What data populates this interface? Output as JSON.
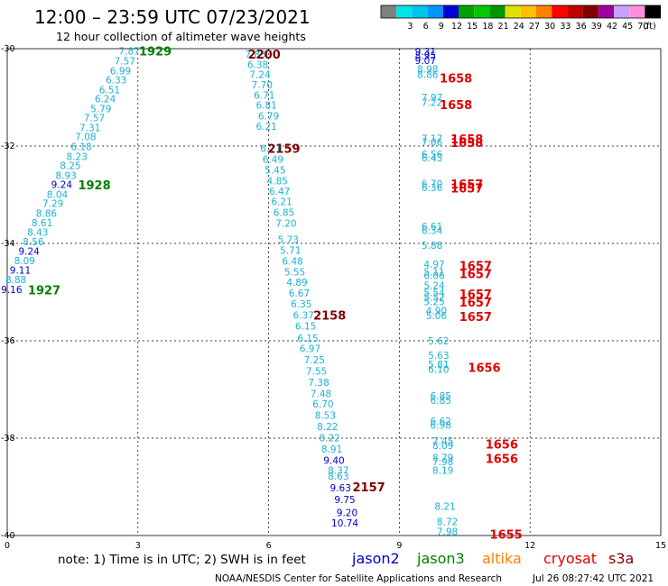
{
  "title": "12:00 – 23:59 UTC 07/23/2021",
  "subtitle": "12 hour collection of altimeter wave heights",
  "colorbar": {
    "unit": "(ft)",
    "swatches": [
      {
        "color": "#808080",
        "label": ""
      },
      {
        "color": "#00e5e5",
        "label": "3"
      },
      {
        "color": "#00c4f0",
        "label": "6"
      },
      {
        "color": "#0095ff",
        "label": "9"
      },
      {
        "color": "#0000d8",
        "label": "12"
      },
      {
        "color": "#00a000",
        "label": "15"
      },
      {
        "color": "#00c800",
        "label": "18"
      },
      {
        "color": "#009600",
        "label": "21"
      },
      {
        "color": "#e0e000",
        "label": "24"
      },
      {
        "color": "#ffc000",
        "label": "27"
      },
      {
        "color": "#ff8000",
        "label": "30"
      },
      {
        "color": "#ff0000",
        "label": "33"
      },
      {
        "color": "#c00000",
        "label": "36"
      },
      {
        "color": "#800000",
        "label": "39"
      },
      {
        "color": "#a000a0",
        "label": "42"
      },
      {
        "color": "#c8a0ff",
        "label": "45"
      },
      {
        "color": "#ff90e0",
        "label": "70"
      },
      {
        "color": "#000000",
        "label": ""
      }
    ]
  },
  "axes": {
    "x_ticks": [
      {
        "value": 0,
        "label": "0"
      },
      {
        "value": 3,
        "label": "3"
      },
      {
        "value": 6,
        "label": "6"
      },
      {
        "value": 9,
        "label": "9"
      },
      {
        "value": 12,
        "label": "12"
      },
      {
        "value": 15,
        "label": "15"
      }
    ],
    "y_ticks": [
      {
        "value": -30,
        "label": "-30"
      },
      {
        "value": -32,
        "label": "-32"
      },
      {
        "value": -34,
        "label": "-34"
      },
      {
        "value": -36,
        "label": "-36"
      },
      {
        "value": -38,
        "label": "-38"
      },
      {
        "value": -40,
        "label": "-40"
      }
    ],
    "x_range": [
      0,
      15
    ],
    "y_range": [
      -40,
      -30
    ]
  },
  "colors": {
    "light": "#1ab2d6",
    "blue": "#0000c8",
    "green": "#008000",
    "maroon": "#800000",
    "red": "#e00000"
  },
  "values": [
    {
      "lon": 2.8,
      "lat": -30.05,
      "t": "7.87",
      "c": "light"
    },
    {
      "lon": 2.7,
      "lat": -30.25,
      "t": "7.57",
      "c": "light"
    },
    {
      "lon": 2.6,
      "lat": -30.45,
      "t": "6.99",
      "c": "light"
    },
    {
      "lon": 2.5,
      "lat": -30.64,
      "t": "6.33",
      "c": "light"
    },
    {
      "lon": 2.35,
      "lat": -30.84,
      "t": "6.51",
      "c": "light"
    },
    {
      "lon": 2.25,
      "lat": -31.03,
      "t": "6.24",
      "c": "light"
    },
    {
      "lon": 2.15,
      "lat": -31.23,
      "t": "5.79",
      "c": "light"
    },
    {
      "lon": 2.0,
      "lat": -31.42,
      "t": "7.57",
      "c": "light"
    },
    {
      "lon": 1.9,
      "lat": -31.62,
      "t": "7.31",
      "c": "light"
    },
    {
      "lon": 1.8,
      "lat": -31.81,
      "t": "7.08",
      "c": "light"
    },
    {
      "lon": 1.7,
      "lat": -32.01,
      "t": "6.18",
      "c": "light"
    },
    {
      "lon": 1.6,
      "lat": -32.21,
      "t": "8.23",
      "c": "light"
    },
    {
      "lon": 1.45,
      "lat": -32.4,
      "t": "8.25",
      "c": "light"
    },
    {
      "lon": 1.35,
      "lat": -32.6,
      "t": "8.93",
      "c": "light"
    },
    {
      "lon": 1.25,
      "lat": -32.79,
      "t": "9.24",
      "c": "blue"
    },
    {
      "lon": 1.15,
      "lat": -32.99,
      "t": "8.04",
      "c": "light"
    },
    {
      "lon": 1.05,
      "lat": -33.18,
      "t": "7.29",
      "c": "light"
    },
    {
      "lon": 0.9,
      "lat": -33.38,
      "t": "8.86",
      "c": "light"
    },
    {
      "lon": 0.8,
      "lat": -33.57,
      "t": "8.61",
      "c": "light"
    },
    {
      "lon": 0.7,
      "lat": -33.77,
      "t": "8.43",
      "c": "light"
    },
    {
      "lon": 0.6,
      "lat": -33.96,
      "t": "8.56",
      "c": "light"
    },
    {
      "lon": 0.5,
      "lat": -34.16,
      "t": "9.24",
      "c": "blue"
    },
    {
      "lon": 0.4,
      "lat": -34.35,
      "t": "8.09",
      "c": "light"
    },
    {
      "lon": 0.3,
      "lat": -34.55,
      "t": "9.11",
      "c": "blue"
    },
    {
      "lon": 0.2,
      "lat": -34.74,
      "t": "8.88",
      "c": "light"
    },
    {
      "lon": 0.1,
      "lat": -34.94,
      "t": "9.16",
      "c": "blue"
    },
    {
      "lon": 5.7,
      "lat": -30.11,
      "t": "7.83",
      "c": "light"
    },
    {
      "lon": 5.75,
      "lat": -30.32,
      "t": "6.38",
      "c": "light"
    },
    {
      "lon": 5.8,
      "lat": -30.53,
      "t": "7.24",
      "c": "light"
    },
    {
      "lon": 5.85,
      "lat": -30.74,
      "t": "7.70",
      "c": "light"
    },
    {
      "lon": 5.9,
      "lat": -30.95,
      "t": "6.71",
      "c": "light"
    },
    {
      "lon": 5.95,
      "lat": -31.16,
      "t": "6.81",
      "c": "light"
    },
    {
      "lon": 6.0,
      "lat": -31.38,
      "t": "6.79",
      "c": "light"
    },
    {
      "lon": 5.95,
      "lat": -31.59,
      "t": "6.21",
      "c": "light"
    },
    {
      "lon": 6.05,
      "lat": -32.05,
      "t": "6.71",
      "c": "light"
    },
    {
      "lon": 6.1,
      "lat": -32.27,
      "t": "6.49",
      "c": "light"
    },
    {
      "lon": 6.15,
      "lat": -32.49,
      "t": "5.45",
      "c": "light"
    },
    {
      "lon": 6.2,
      "lat": -32.71,
      "t": "4.85",
      "c": "light"
    },
    {
      "lon": 6.25,
      "lat": -32.93,
      "t": "6.47",
      "c": "light"
    },
    {
      "lon": 6.3,
      "lat": -33.14,
      "t": "6.21",
      "c": "light"
    },
    {
      "lon": 6.35,
      "lat": -33.36,
      "t": "6.85",
      "c": "light"
    },
    {
      "lon": 6.4,
      "lat": -33.58,
      "t": "7.20",
      "c": "light"
    },
    {
      "lon": 6.45,
      "lat": -33.92,
      "t": "5.73",
      "c": "light"
    },
    {
      "lon": 6.5,
      "lat": -34.14,
      "t": "5.71",
      "c": "light"
    },
    {
      "lon": 6.55,
      "lat": -34.36,
      "t": "6.48",
      "c": "light"
    },
    {
      "lon": 6.6,
      "lat": -34.58,
      "t": "5.55",
      "c": "light"
    },
    {
      "lon": 6.65,
      "lat": -34.8,
      "t": "4.89",
      "c": "light"
    },
    {
      "lon": 6.7,
      "lat": -35.02,
      "t": "6.67",
      "c": "light"
    },
    {
      "lon": 6.75,
      "lat": -35.24,
      "t": "6.35",
      "c": "light"
    },
    {
      "lon": 6.8,
      "lat": -35.47,
      "t": "6.37",
      "c": "light"
    },
    {
      "lon": 6.85,
      "lat": -35.69,
      "t": "6.15",
      "c": "light"
    },
    {
      "lon": 6.9,
      "lat": -35.94,
      "t": "6.15",
      "c": "light"
    },
    {
      "lon": 6.95,
      "lat": -36.16,
      "t": "6.97",
      "c": "light"
    },
    {
      "lon": 7.05,
      "lat": -36.39,
      "t": "7.25",
      "c": "light"
    },
    {
      "lon": 7.1,
      "lat": -36.62,
      "t": "7.55",
      "c": "light"
    },
    {
      "lon": 7.15,
      "lat": -36.85,
      "t": "7.38",
      "c": "light"
    },
    {
      "lon": 7.2,
      "lat": -37.08,
      "t": "7.48",
      "c": "light"
    },
    {
      "lon": 7.25,
      "lat": -37.3,
      "t": "6.70",
      "c": "light"
    },
    {
      "lon": 7.3,
      "lat": -37.53,
      "t": "8.53",
      "c": "light"
    },
    {
      "lon": 7.35,
      "lat": -37.76,
      "t": "8.22",
      "c": "light"
    },
    {
      "lon": 7.4,
      "lat": -37.99,
      "t": "8.22",
      "c": "light"
    },
    {
      "lon": 7.45,
      "lat": -38.22,
      "t": "8.91",
      "c": "light"
    },
    {
      "lon": 7.5,
      "lat": -38.45,
      "t": "9.40",
      "c": "blue"
    },
    {
      "lon": 7.6,
      "lat": -38.66,
      "t": "8.37",
      "c": "light"
    },
    {
      "lon": 7.6,
      "lat": -38.78,
      "t": "8.63",
      "c": "light"
    },
    {
      "lon": 7.65,
      "lat": -39.02,
      "t": "9.63",
      "c": "blue"
    },
    {
      "lon": 7.75,
      "lat": -39.26,
      "t": "9.75",
      "c": "blue"
    },
    {
      "lon": 7.8,
      "lat": -39.53,
      "t": "9.20",
      "c": "blue"
    },
    {
      "lon": 7.75,
      "lat": -39.74,
      "t": "10.74",
      "c": "blue"
    },
    {
      "lon": 9.6,
      "lat": -30.06,
      "t": "9.31",
      "c": "blue"
    },
    {
      "lon": 9.6,
      "lat": -30.14,
      "t": "8.95",
      "c": "blue"
    },
    {
      "lon": 9.6,
      "lat": -30.24,
      "t": "9.07",
      "c": "blue"
    },
    {
      "lon": 9.65,
      "lat": -30.42,
      "t": "8.98",
      "c": "light"
    },
    {
      "lon": 9.65,
      "lat": -30.53,
      "t": "8.86",
      "c": "light"
    },
    {
      "lon": 9.75,
      "lat": -31.0,
      "t": "7.97",
      "c": "light"
    },
    {
      "lon": 9.75,
      "lat": -31.1,
      "t": "7.22",
      "c": "light"
    },
    {
      "lon": 9.75,
      "lat": -31.84,
      "t": "7.17",
      "c": "light"
    },
    {
      "lon": 9.75,
      "lat": -31.92,
      "t": "7.06",
      "c": "light"
    },
    {
      "lon": 9.75,
      "lat": -32.17,
      "t": "6.56",
      "c": "light"
    },
    {
      "lon": 9.75,
      "lat": -32.24,
      "t": "6.43",
      "c": "light"
    },
    {
      "lon": 9.75,
      "lat": -32.77,
      "t": "6.70",
      "c": "light"
    },
    {
      "lon": 9.75,
      "lat": -32.85,
      "t": "6.36",
      "c": "light"
    },
    {
      "lon": 9.75,
      "lat": -33.65,
      "t": "6.61",
      "c": "light"
    },
    {
      "lon": 9.75,
      "lat": -33.73,
      "t": "6.34",
      "c": "light"
    },
    {
      "lon": 9.75,
      "lat": -34.04,
      "t": "5.88",
      "c": "light"
    },
    {
      "lon": 9.8,
      "lat": -34.43,
      "t": "4.97",
      "c": "light"
    },
    {
      "lon": 9.8,
      "lat": -34.58,
      "t": "5.11",
      "c": "light"
    },
    {
      "lon": 9.8,
      "lat": -34.66,
      "t": "6.06",
      "c": "light"
    },
    {
      "lon": 9.8,
      "lat": -34.86,
      "t": "5.24",
      "c": "light"
    },
    {
      "lon": 9.8,
      "lat": -35.01,
      "t": "5.54",
      "c": "light"
    },
    {
      "lon": 9.8,
      "lat": -35.1,
      "t": "5.52",
      "c": "light"
    },
    {
      "lon": 9.8,
      "lat": -35.19,
      "t": "5.25",
      "c": "light"
    },
    {
      "lon": 9.85,
      "lat": -35.38,
      "t": "4.90",
      "c": "light"
    },
    {
      "lon": 9.85,
      "lat": -35.48,
      "t": "5.06",
      "c": "light"
    },
    {
      "lon": 9.9,
      "lat": -36.0,
      "t": "5.62",
      "c": "light"
    },
    {
      "lon": 9.9,
      "lat": -36.3,
      "t": "5.63",
      "c": "light"
    },
    {
      "lon": 9.9,
      "lat": -36.48,
      "t": "5.81",
      "c": "light"
    },
    {
      "lon": 9.9,
      "lat": -36.58,
      "t": "6.10",
      "c": "light"
    },
    {
      "lon": 9.95,
      "lat": -37.13,
      "t": "6.85",
      "c": "light"
    },
    {
      "lon": 9.95,
      "lat": -37.22,
      "t": "6.85",
      "c": "light"
    },
    {
      "lon": 9.95,
      "lat": -37.65,
      "t": "6.62",
      "c": "light"
    },
    {
      "lon": 9.95,
      "lat": -37.73,
      "t": "6.98",
      "c": "light"
    },
    {
      "lon": 10.0,
      "lat": -38.06,
      "t": "7.45",
      "c": "light"
    },
    {
      "lon": 10.0,
      "lat": -38.15,
      "t": "8.09",
      "c": "light"
    },
    {
      "lon": 10.0,
      "lat": -38.4,
      "t": "8.79",
      "c": "light"
    },
    {
      "lon": 10.0,
      "lat": -38.48,
      "t": "7.98",
      "c": "light"
    },
    {
      "lon": 10.0,
      "lat": -38.66,
      "t": "8.19",
      "c": "light"
    },
    {
      "lon": 10.05,
      "lat": -39.4,
      "t": "8.21",
      "c": "light"
    },
    {
      "lon": 10.1,
      "lat": -39.71,
      "t": "8.72",
      "c": "light"
    },
    {
      "lon": 10.1,
      "lat": -39.92,
      "t": "7.98",
      "c": "light"
    }
  ],
  "times": [
    {
      "lon": 3.4,
      "lat": -30.05,
      "t": "1929",
      "c": "green"
    },
    {
      "lon": 2.0,
      "lat": -32.8,
      "t": "1928",
      "c": "green"
    },
    {
      "lon": 0.85,
      "lat": -34.95,
      "t": "1927",
      "c": "green"
    },
    {
      "lon": 5.9,
      "lat": -30.11,
      "t": "2200",
      "c": "maroon"
    },
    {
      "lon": 6.35,
      "lat": -32.05,
      "t": "2159",
      "c": "maroon"
    },
    {
      "lon": 7.4,
      "lat": -35.47,
      "t": "2158",
      "c": "maroon"
    },
    {
      "lon": 8.3,
      "lat": -39.0,
      "t": "2157",
      "c": "maroon"
    },
    {
      "lon": 10.3,
      "lat": -30.6,
      "t": "1658",
      "c": "red"
    },
    {
      "lon": 10.3,
      "lat": -31.15,
      "t": "1658",
      "c": "red"
    },
    {
      "lon": 10.55,
      "lat": -31.85,
      "t": "1658",
      "c": "red"
    },
    {
      "lon": 10.55,
      "lat": -31.93,
      "t": "1658",
      "c": "red"
    },
    {
      "lon": 10.55,
      "lat": -32.78,
      "t": "1657",
      "c": "red"
    },
    {
      "lon": 10.55,
      "lat": -32.86,
      "t": "1657",
      "c": "red"
    },
    {
      "lon": 10.75,
      "lat": -34.45,
      "t": "1657",
      "c": "red"
    },
    {
      "lon": 10.75,
      "lat": -34.62,
      "t": "1657",
      "c": "red"
    },
    {
      "lon": 10.75,
      "lat": -35.04,
      "t": "1657",
      "c": "red"
    },
    {
      "lon": 10.75,
      "lat": -35.2,
      "t": "1657",
      "c": "red"
    },
    {
      "lon": 10.75,
      "lat": -35.5,
      "t": "1657",
      "c": "red"
    },
    {
      "lon": 10.95,
      "lat": -36.55,
      "t": "1656",
      "c": "red"
    },
    {
      "lon": 11.35,
      "lat": -38.12,
      "t": "1656",
      "c": "red"
    },
    {
      "lon": 11.35,
      "lat": -38.42,
      "t": "1656",
      "c": "red"
    },
    {
      "lon": 11.45,
      "lat": -39.97,
      "t": "1655",
      "c": "red"
    }
  ],
  "footer": {
    "note": "note:  1) Time is in UTC;  2) SWH is in feet",
    "legend": [
      {
        "name": "jason2",
        "color": "#0000c8"
      },
      {
        "name": "jason3",
        "color": "#008000"
      },
      {
        "name": "altika",
        "color": "#ff8000"
      },
      {
        "name": "cryosat",
        "color": "#e00000"
      },
      {
        "name": "s3a",
        "color": "#800000"
      }
    ],
    "credit": "NOAA/NESDIS Center for Satellite Applications and Research",
    "timestamp": "Jul 26 08:27:42 UTC 2021"
  }
}
